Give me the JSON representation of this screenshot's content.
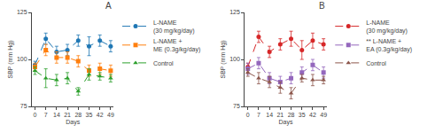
{
  "chart_data": [
    {
      "type": "line",
      "title": "A",
      "xlabel": "Days",
      "ylabel": "SBP (mm Hg)",
      "x": [
        0,
        7,
        14,
        21,
        28,
        35,
        42,
        49
      ],
      "xlim": [
        -2,
        51
      ],
      "xticks": [
        0,
        7,
        14,
        21,
        28,
        35,
        42,
        49
      ],
      "ylim": [
        75,
        125
      ],
      "yticks": [
        75,
        100,
        125
      ],
      "grid": false,
      "legend": "upper right",
      "series": [
        {
          "name": "L-NAME\n(30 mg/kg/day)",
          "values": [
            97,
            111,
            104,
            105,
            110,
            107,
            110,
            107
          ],
          "errors": [
            2,
            3,
            3,
            3,
            3,
            5,
            3,
            3
          ],
          "marker": "circle",
          "line_style": "dashed"
        },
        {
          "name": "L-NAME +\nME (0.3g/kg/day)",
          "values": [
            96,
            105,
            101,
            101,
            99,
            94,
            95,
            94
          ],
          "errors": [
            2,
            3,
            3,
            3,
            3,
            3,
            3,
            3
          ],
          "marker": "square",
          "line_style": "dashed"
        },
        {
          "name": "Control",
          "values": [
            94,
            90,
            89,
            90,
            83,
            92,
            91,
            90
          ],
          "errors": [
            2,
            5,
            3,
            3,
            2,
            3,
            2,
            2
          ],
          "marker": "triangle",
          "line_style": "dashed"
        }
      ]
    },
    {
      "type": "line",
      "title": "B",
      "xlabel": "Days",
      "ylabel": "SBP (mm Hg)",
      "x": [
        0,
        7,
        14,
        21,
        28,
        35,
        42,
        49
      ],
      "xlim": [
        -2,
        51
      ],
      "xticks": [
        0,
        7,
        14,
        21,
        28,
        35,
        42,
        49
      ],
      "ylim": [
        75,
        125
      ],
      "yticks": [
        75,
        100,
        125
      ],
      "grid": false,
      "legend": "upper right",
      "series": [
        {
          "name": "L-NAME\n(30 mg/kg/day)",
          "values": [
            96,
            112,
            104,
            108,
            111,
            105,
            110,
            108
          ],
          "errors": [
            2,
            3,
            3,
            3,
            4,
            5,
            4,
            3
          ],
          "marker": "circle",
          "line_style": "dashed"
        },
        {
          "name": "** L-NAME +\nEA (0.3g/kg/day)",
          "values": [
            95,
            98,
            90,
            88,
            90,
            93,
            97,
            93
          ],
          "errors": [
            3,
            3,
            3,
            3,
            3,
            3,
            3,
            3
          ],
          "marker": "square",
          "line_style": "dashed"
        },
        {
          "name": "Control",
          "values": [
            93,
            90,
            88,
            85,
            82,
            90,
            89,
            89
          ],
          "errors": [
            2,
            3,
            3,
            3,
            3,
            2,
            3,
            2
          ],
          "marker": "triangle",
          "line_style": "dashed"
        }
      ]
    }
  ]
}
